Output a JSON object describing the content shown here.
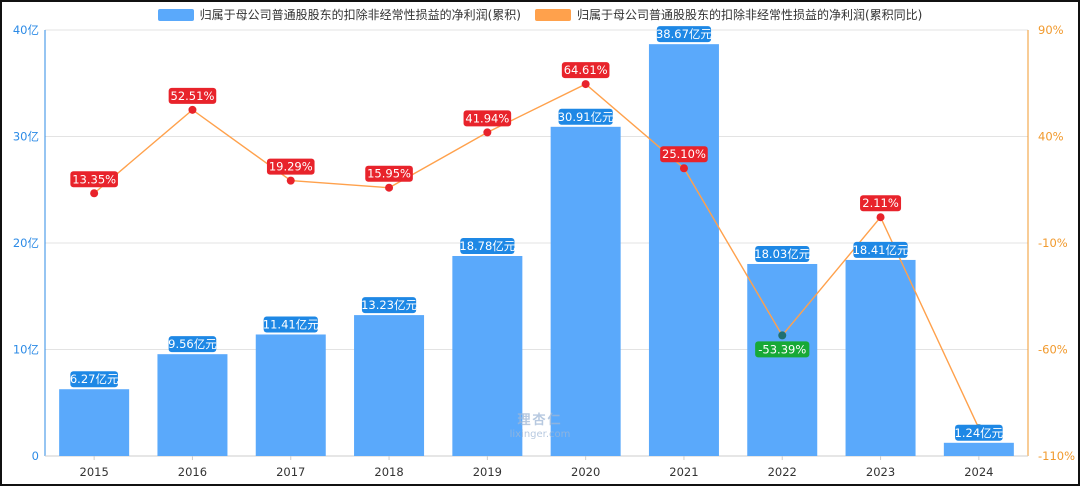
{
  "legend": {
    "bar_label": "归属于母公司普通股股东的扣除非经常性损益的净利润(累积)",
    "line_label": "归属于母公司普通股股东的扣除非经常性损益的净利润(累积同比)"
  },
  "watermark": {
    "cn": "理杏仁",
    "en": "lixinger.com"
  },
  "colors": {
    "bar": "#5aa9fb",
    "line": "#ffa14c",
    "pos_label": "#e8232b",
    "neg_label": "#17a936",
    "left_axis": "#2d8be6",
    "right_axis": "#f19a2e"
  },
  "chart_data": {
    "type": "bar",
    "categories": [
      "2015",
      "2016",
      "2017",
      "2018",
      "2019",
      "2020",
      "2021",
      "2022",
      "2023",
      "2024"
    ],
    "series": [
      {
        "name": "归属于母公司普通股股东的扣除非经常性损益的净利润(累积)",
        "type": "bar",
        "axis": "left",
        "values": [
          6.27,
          9.56,
          11.41,
          13.23,
          18.78,
          30.91,
          38.67,
          18.03,
          18.41,
          1.24
        ],
        "labels": [
          "6.27亿元",
          "9.56亿元",
          "11.41亿元",
          "13.23亿元",
          "18.78亿元",
          "30.91亿元",
          "38.67亿元",
          "18.03亿元",
          "18.41亿元",
          "1.24亿元"
        ]
      },
      {
        "name": "归属于母公司普通股股东的扣除非经常性损益的净利润(累积同比)",
        "type": "line",
        "axis": "right",
        "values": [
          13.35,
          52.51,
          19.29,
          15.95,
          41.94,
          64.61,
          25.1,
          -53.39,
          2.11,
          -97.0
        ],
        "labels": [
          "13.35%",
          "52.51%",
          "19.29%",
          "15.95%",
          "41.94%",
          "64.61%",
          "25.10%",
          "-53.39%",
          "2.11%",
          ""
        ]
      }
    ],
    "y_left": {
      "min": 0,
      "max": 40,
      "ticks": [
        "0",
        "10亿",
        "20亿",
        "30亿",
        "40亿"
      ],
      "tick_values": [
        0,
        10,
        20,
        30,
        40
      ]
    },
    "y_right": {
      "min": -110,
      "max": 90,
      "ticks": [
        "-110%",
        "-60%",
        "-10%",
        "40%",
        "90%"
      ],
      "tick_values": [
        -110,
        -60,
        -10,
        40,
        90
      ]
    },
    "grid": true,
    "legend_position": "top-center"
  }
}
